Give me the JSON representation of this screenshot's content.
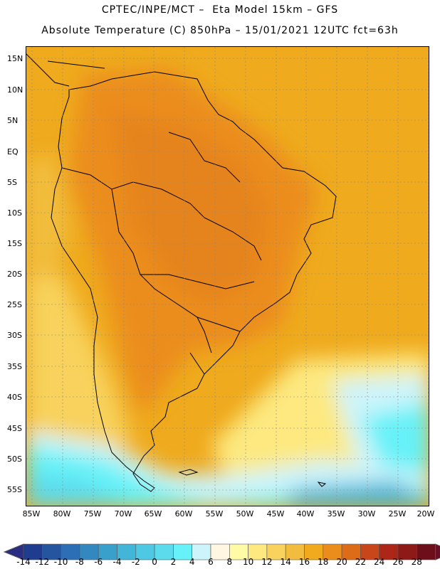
{
  "header": {
    "line1": "CPTEC/INPE/MCT –  Eta Model 15km – GFS",
    "line2": "Absolute Temperature (C) 850hPa – 15/01/2021 12UTC fct=63h"
  },
  "map": {
    "lat_ticks": [
      "15N",
      "10N",
      "5N",
      "EQ",
      "5S",
      "10S",
      "15S",
      "20S",
      "25S",
      "30S",
      "35S",
      "40S",
      "45S",
      "50S",
      "55S"
    ],
    "lon_ticks": [
      "85W",
      "80W",
      "75W",
      "70W",
      "65W",
      "60W",
      "55W",
      "50W",
      "45W",
      "40W",
      "35W",
      "30W",
      "25W",
      "20W"
    ]
  },
  "colorbar": {
    "labels": [
      "-14",
      "-12",
      "-10",
      "-8",
      "-6",
      "-4",
      "-2",
      "0",
      "2",
      "4",
      "6",
      "8",
      "10",
      "12",
      "14",
      "16",
      "18",
      "20",
      "22",
      "24",
      "26",
      "28"
    ],
    "colors": [
      "#1f3c8f",
      "#25559f",
      "#2c6fb4",
      "#3388c0",
      "#39a0cc",
      "#43b5d8",
      "#4fc8e3",
      "#5bdbec",
      "#66f2f8",
      "#cdf4fb",
      "#fff7e2",
      "#fffaa6",
      "#fde980",
      "#f8d25c",
      "#f2bd3e",
      "#efaa1d",
      "#eb8d1c",
      "#dd6c18",
      "#c8461a",
      "#ad2718",
      "#8e1a18",
      "#6d0f1a"
    ],
    "left_arrow": "#2a2e82",
    "right_arrow": "#6a0e26"
  }
}
